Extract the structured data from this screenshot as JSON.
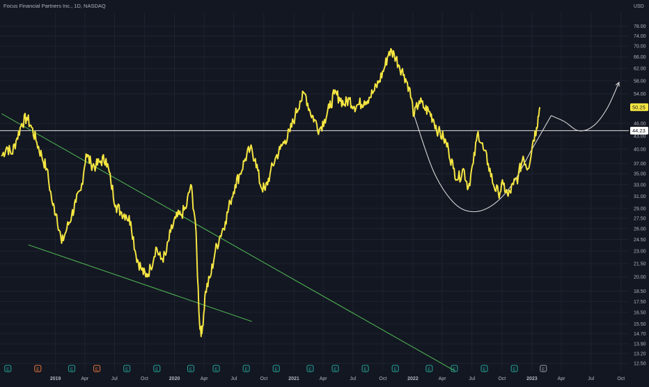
{
  "header": {
    "title": "Focus Financial Partners Inc., 1D, NASDAQ"
  },
  "colors": {
    "background": "#131722",
    "grid": "#1f2330",
    "axis_text": "#b2b5be",
    "price_line": "#f5e642",
    "trend_line": "#4caf50",
    "annotation": "#d8d8d8",
    "event_earnings": "#26a69a",
    "event_dividend": "#e8743b"
  },
  "chart_data": {
    "type": "line",
    "title": "Focus Financial Partners Inc., 1D, NASDAQ",
    "y_unit": "USD",
    "y_scale": "log",
    "ylim": [
      12.0,
      84.0
    ],
    "xlim": [
      "2018-07-15",
      "2023-10-25"
    ],
    "grid": true,
    "x_ticks": [
      {
        "label": "2019",
        "date": "2019-01-01"
      },
      {
        "label": "Apr",
        "date": "2019-04-01"
      },
      {
        "label": "Jul",
        "date": "2019-07-01"
      },
      {
        "label": "Oct",
        "date": "2019-10-01"
      },
      {
        "label": "2020",
        "date": "2020-01-01"
      },
      {
        "label": "Apr",
        "date": "2020-04-01"
      },
      {
        "label": "Jul",
        "date": "2020-07-01"
      },
      {
        "label": "Oct",
        "date": "2020-10-01"
      },
      {
        "label": "2021",
        "date": "2021-01-01"
      },
      {
        "label": "Apr",
        "date": "2021-04-01"
      },
      {
        "label": "Jul",
        "date": "2021-07-01"
      },
      {
        "label": "Oct",
        "date": "2021-10-01"
      },
      {
        "label": "2022",
        "date": "2022-01-01"
      },
      {
        "label": "Apr",
        "date": "2022-04-01"
      },
      {
        "label": "Jul",
        "date": "2022-07-01"
      },
      {
        "label": "Oct",
        "date": "2022-10-01"
      },
      {
        "label": "2023",
        "date": "2023-01-01"
      },
      {
        "label": "Apr",
        "date": "2023-04-01"
      },
      {
        "label": "Jul",
        "date": "2023-07-01"
      },
      {
        "label": "Oct",
        "date": "2023-10-01"
      }
    ],
    "y_ticks": [
      {
        "label": "78.00",
        "value": 78.0
      },
      {
        "label": "74.00",
        "value": 74.0
      },
      {
        "label": "70.00",
        "value": 70.0
      },
      {
        "label": "66.00",
        "value": 66.0
      },
      {
        "label": "62.00",
        "value": 62.0
      },
      {
        "label": "58.00",
        "value": 58.0
      },
      {
        "label": "54.00",
        "value": 54.0
      },
      {
        "label": "46.00",
        "value": 46.0
      },
      {
        "label": "43.00",
        "value": 43.0
      },
      {
        "label": "40.00",
        "value": 40.0
      },
      {
        "label": "37.00",
        "value": 37.0
      },
      {
        "label": "35.00",
        "value": 35.0
      },
      {
        "label": "33.00",
        "value": 33.0
      },
      {
        "label": "31.00",
        "value": 31.0
      },
      {
        "label": "29.00",
        "value": 29.0
      },
      {
        "label": "27.50",
        "value": 27.5
      },
      {
        "label": "26.00",
        "value": 26.0
      },
      {
        "label": "24.50",
        "value": 24.5
      },
      {
        "label": "23.00",
        "value": 23.0
      },
      {
        "label": "21.50",
        "value": 21.5
      },
      {
        "label": "20.00",
        "value": 20.0
      },
      {
        "label": "18.50",
        "value": 18.5
      },
      {
        "label": "17.50",
        "value": 17.5
      },
      {
        "label": "16.50",
        "value": 16.5
      },
      {
        "label": "15.50",
        "value": 15.5
      },
      {
        "label": "14.70",
        "value": 14.7
      },
      {
        "label": "13.90",
        "value": 13.9
      },
      {
        "label": "13.20",
        "value": 13.2
      },
      {
        "label": "12.50",
        "value": 12.5
      }
    ],
    "price_labels": [
      {
        "label": "50.25",
        "value": 50.25,
        "style": "last"
      },
      {
        "label": "44.23",
        "value": 44.23,
        "style": "level"
      }
    ],
    "series": [
      {
        "x": [
          "2018-07-20",
          "2018-08-05",
          "2018-08-20",
          "2018-09-05",
          "2018-09-20",
          "2018-10-05",
          "2018-10-20",
          "2018-11-05",
          "2018-11-20",
          "2018-12-05",
          "2018-12-24",
          "2019-01-05",
          "2019-01-20",
          "2019-02-05",
          "2019-02-20",
          "2019-03-05",
          "2019-03-20",
          "2019-04-05",
          "2019-04-20",
          "2019-05-05",
          "2019-05-20",
          "2019-06-05",
          "2019-06-20",
          "2019-07-05",
          "2019-07-20",
          "2019-08-05",
          "2019-08-20",
          "2019-09-05",
          "2019-09-20",
          "2019-10-05",
          "2019-10-20",
          "2019-11-05",
          "2019-11-20",
          "2019-12-05",
          "2019-12-20",
          "2020-01-05",
          "2020-01-20",
          "2020-02-05",
          "2020-02-20",
          "2020-03-05",
          "2020-03-18",
          "2020-03-25",
          "2020-04-05",
          "2020-04-20",
          "2020-05-05",
          "2020-05-20",
          "2020-06-05",
          "2020-06-20",
          "2020-07-05",
          "2020-07-20",
          "2020-08-05",
          "2020-08-20",
          "2020-09-05",
          "2020-09-20",
          "2020-10-05",
          "2020-10-20",
          "2020-11-05",
          "2020-11-20",
          "2020-12-05",
          "2020-12-20",
          "2021-01-05",
          "2021-01-20",
          "2021-02-05",
          "2021-02-20",
          "2021-03-05",
          "2021-03-20",
          "2021-04-05",
          "2021-04-20",
          "2021-05-05",
          "2021-05-20",
          "2021-06-05",
          "2021-06-20",
          "2021-07-05",
          "2021-07-20",
          "2021-08-05",
          "2021-08-20",
          "2021-09-05",
          "2021-09-20",
          "2021-10-05",
          "2021-10-20",
          "2021-11-05",
          "2021-11-20",
          "2021-12-05",
          "2021-12-20",
          "2022-01-05",
          "2022-01-20",
          "2022-02-05",
          "2022-02-20",
          "2022-03-05",
          "2022-03-20",
          "2022-04-05",
          "2022-04-20",
          "2022-05-05",
          "2022-05-20",
          "2022-06-05",
          "2022-06-20",
          "2022-07-05",
          "2022-07-20",
          "2022-08-05",
          "2022-08-20",
          "2022-09-05",
          "2022-09-20",
          "2022-10-05",
          "2022-10-20",
          "2022-11-05",
          "2022-11-20",
          "2022-12-05",
          "2022-12-20",
          "2023-01-05",
          "2023-01-15",
          "2023-01-25"
        ],
        "values": [
          38.5,
          40.5,
          39.0,
          42.5,
          46.0,
          47.5,
          45.0,
          41.5,
          38.5,
          36.0,
          29.5,
          28.0,
          24.0,
          26.0,
          28.0,
          30.0,
          32.0,
          39.0,
          37.0,
          36.5,
          37.5,
          38.0,
          33.5,
          29.5,
          28.5,
          28.0,
          27.0,
          22.5,
          21.0,
          20.0,
          21.0,
          23.5,
          22.0,
          22.5,
          25.5,
          27.5,
          28.0,
          29.0,
          33.0,
          27.0,
          15.5,
          14.7,
          18.5,
          20.0,
          23.0,
          25.0,
          27.0,
          30.0,
          33.0,
          35.0,
          38.0,
          40.0,
          38.0,
          33.0,
          32.0,
          35.0,
          38.0,
          40.0,
          42.0,
          44.0,
          48.0,
          52.0,
          54.0,
          49.0,
          47.0,
          44.5,
          47.0,
          50.0,
          54.0,
          53.0,
          51.0,
          52.5,
          50.5,
          51.0,
          52.0,
          53.0,
          55.0,
          58.0,
          62.0,
          68.0,
          67.0,
          63.0,
          60.0,
          56.0,
          48.0,
          52.0,
          50.0,
          49.0,
          47.0,
          44.0,
          42.5,
          40.0,
          36.0,
          34.0,
          36.0,
          32.5,
          37.0,
          44.0,
          40.0,
          37.0,
          33.0,
          31.5,
          33.0,
          31.0,
          33.0,
          34.5,
          38.5,
          36.0,
          42.0,
          45.0,
          50.25
        ]
      }
    ],
    "event_markers": [
      {
        "label": "E",
        "date": "2018-08-08",
        "kind": "earnings"
      },
      {
        "label": "E",
        "date": "2018-11-08",
        "kind": "dividend"
      },
      {
        "label": "E",
        "date": "2019-02-20",
        "kind": "earnings"
      },
      {
        "label": "E",
        "date": "2019-05-08",
        "kind": "dividend"
      },
      {
        "label": "E",
        "date": "2019-08-08",
        "kind": "earnings"
      },
      {
        "label": "E",
        "date": "2019-11-08",
        "kind": "earnings"
      },
      {
        "label": "E",
        "date": "2020-02-20",
        "kind": "earnings"
      },
      {
        "label": "E",
        "date": "2020-05-08",
        "kind": "earnings"
      },
      {
        "label": "E",
        "date": "2020-08-08",
        "kind": "earnings"
      },
      {
        "label": "E",
        "date": "2020-11-08",
        "kind": "earnings"
      },
      {
        "label": "E",
        "date": "2021-02-20",
        "kind": "earnings"
      },
      {
        "label": "E",
        "date": "2021-05-08",
        "kind": "earnings"
      },
      {
        "label": "E",
        "date": "2021-08-08",
        "kind": "earnings"
      },
      {
        "label": "E",
        "date": "2021-11-08",
        "kind": "earnings"
      },
      {
        "label": "E",
        "date": "2022-02-20",
        "kind": "earnings"
      },
      {
        "label": "E",
        "date": "2022-05-08",
        "kind": "earnings"
      },
      {
        "label": "E",
        "date": "2022-08-08",
        "kind": "earnings"
      },
      {
        "label": "E",
        "date": "2022-11-08",
        "kind": "earnings"
      },
      {
        "label": "E",
        "date": "2023-02-05",
        "kind": "upcoming"
      }
    ],
    "annotations": {
      "horizontal_level": 44.23,
      "trend_lines": [
        {
          "from": {
            "date": "2018-07-20",
            "value": 48.5
          },
          "to": {
            "date": "2022-05-10",
            "value": 12.0
          }
        },
        {
          "from": {
            "date": "2018-10-10",
            "value": 23.8
          },
          "to": {
            "date": "2020-08-25",
            "value": 15.7
          }
        }
      ],
      "cup_curve": [
        {
          "date": "2022-01-05",
          "value": 48.0
        },
        {
          "date": "2022-03-05",
          "value": 35.5
        },
        {
          "date": "2022-05-05",
          "value": 30.0
        },
        {
          "date": "2022-07-01",
          "value": 28.5
        },
        {
          "date": "2022-09-01",
          "value": 29.5
        },
        {
          "date": "2022-11-01",
          "value": 33.0
        },
        {
          "date": "2023-01-01",
          "value": 40.0
        },
        {
          "date": "2023-03-01",
          "value": 48.0
        }
      ],
      "projection_path": [
        {
          "date": "2023-03-01",
          "value": 48.0
        },
        {
          "date": "2023-04-10",
          "value": 46.5
        },
        {
          "date": "2023-05-25",
          "value": 44.2
        },
        {
          "date": "2023-07-10",
          "value": 45.5
        },
        {
          "date": "2023-08-20",
          "value": 50.0
        },
        {
          "date": "2023-09-25",
          "value": 57.5
        }
      ]
    }
  }
}
